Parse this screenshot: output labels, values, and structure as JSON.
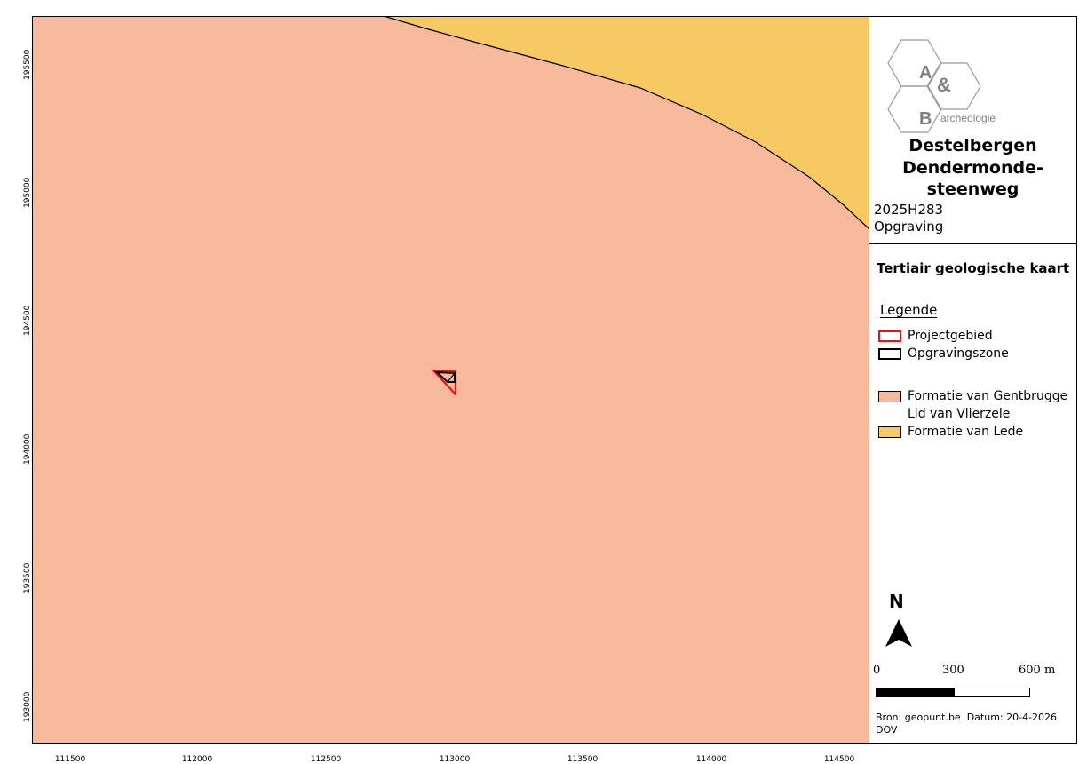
{
  "map": {
    "colors": {
      "gentbrugge": "#f7b99c",
      "lede": "#f6c962",
      "project_outline": "#e8131a",
      "opgraving_outline": "#000000"
    },
    "y_ticks": [
      "195500",
      "195000",
      "194500",
      "194000",
      "193500",
      "193000"
    ],
    "x_ticks": [
      "111500",
      "112000",
      "112500",
      "113000",
      "113500",
      "114000",
      "114500"
    ]
  },
  "logo": {
    "letter_a": "A",
    "ampersand": "&",
    "letter_b": "B",
    "subtitle": "archeologie"
  },
  "project": {
    "title_line1": "Destelbergen",
    "title_line2": "Dendermonde-",
    "title_line3": "steenweg",
    "code": "2025H283",
    "type": "Opgraving"
  },
  "legend": {
    "map_title": "Tertiair geologische kaart",
    "heading": "Legende",
    "items": [
      {
        "label": "Projectgebied"
      },
      {
        "label": "Opgravingszone"
      },
      {
        "label": "Formatie van Gentbrugge"
      },
      {
        "label": "Lid van Vlierzele"
      },
      {
        "label": "Formatie van Lede"
      }
    ]
  },
  "north_arrow": {
    "label": "N",
    "icon": "north-arrow-icon"
  },
  "scalebar": {
    "label_0": "0",
    "label_mid": "300",
    "label_end": "600 m"
  },
  "source": {
    "bron": "Bron: geopunt.be",
    "datum": "Datum: 20-4-2026",
    "extra": "DOV"
  }
}
